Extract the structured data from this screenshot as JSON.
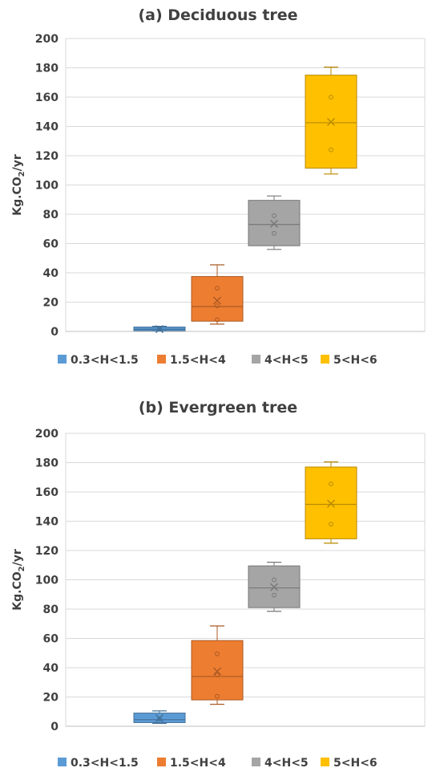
{
  "chart_data": [
    {
      "type": "box",
      "title": "(a) Deciduous tree",
      "ylabel": "Kg.CO2/yr",
      "ylabel_parts": {
        "pre": "Kg.CO",
        "sub": "2",
        "post": "/yr"
      },
      "ylim": [
        0,
        200
      ],
      "yticks": [
        "0",
        "20",
        "40",
        "60",
        "80",
        "100",
        "120",
        "140",
        "160",
        "180",
        "200"
      ],
      "grid": true,
      "legend_position": "bottom",
      "series": [
        {
          "name": "0.3<H<1.5",
          "color": "#5b9bd5",
          "min": 0.5,
          "q1": 0.5,
          "median": 1.5,
          "q3": 3,
          "max": 3.5,
          "mean": 1.6,
          "points": [
            1.5
          ]
        },
        {
          "name": "1.5<H<4",
          "color": "#ed7d31",
          "min": 5,
          "q1": 7,
          "median": 17,
          "q3": 37.5,
          "max": 45.5,
          "mean": 21,
          "points": [
            8,
            17.5,
            29.5
          ]
        },
        {
          "name": "4<H<5",
          "color": "#a5a5a5",
          "min": 56,
          "q1": 58.5,
          "median": 73,
          "q3": 89.5,
          "max": 92.5,
          "mean": 73.5,
          "points": [
            67,
            79
          ]
        },
        {
          "name": "5<H<6",
          "color": "#ffc000",
          "min": 107.5,
          "q1": 111.5,
          "median": 142.5,
          "q3": 175,
          "max": 180.5,
          "mean": 143,
          "points": [
            124,
            160
          ]
        }
      ]
    },
    {
      "type": "box",
      "title": "(b) Evergreen tree",
      "ylabel": "Kg.CO2/yr",
      "ylabel_parts": {
        "pre": "Kg.CO",
        "sub": "2",
        "post": "/yr"
      },
      "ylim": [
        0,
        200
      ],
      "yticks": [
        "0",
        "20",
        "40",
        "60",
        "80",
        "100",
        "120",
        "140",
        "160",
        "180",
        "200"
      ],
      "grid": true,
      "legend_position": "bottom",
      "series": [
        {
          "name": "0.3<H<1.5",
          "color": "#5b9bd5",
          "min": 2,
          "q1": 2.5,
          "median": 4.5,
          "q3": 9,
          "max": 10.5,
          "mean": 5.5,
          "points": [
            5
          ]
        },
        {
          "name": "1.5<H<4",
          "color": "#ed7d31",
          "min": 15,
          "q1": 18,
          "median": 34,
          "q3": 58.5,
          "max": 68.5,
          "mean": 37.5,
          "points": [
            20.5,
            35,
            49.5
          ]
        },
        {
          "name": "4<H<5",
          "color": "#a5a5a5",
          "min": 78.5,
          "q1": 81,
          "median": 94.5,
          "q3": 109.5,
          "max": 112,
          "mean": 95,
          "points": [
            89.5,
            100
          ]
        },
        {
          "name": "5<H<6",
          "color": "#ffc000",
          "min": 125,
          "q1": 128,
          "median": 151.5,
          "q3": 177,
          "max": 180.5,
          "mean": 152,
          "points": [
            138,
            165.5
          ]
        }
      ]
    }
  ]
}
